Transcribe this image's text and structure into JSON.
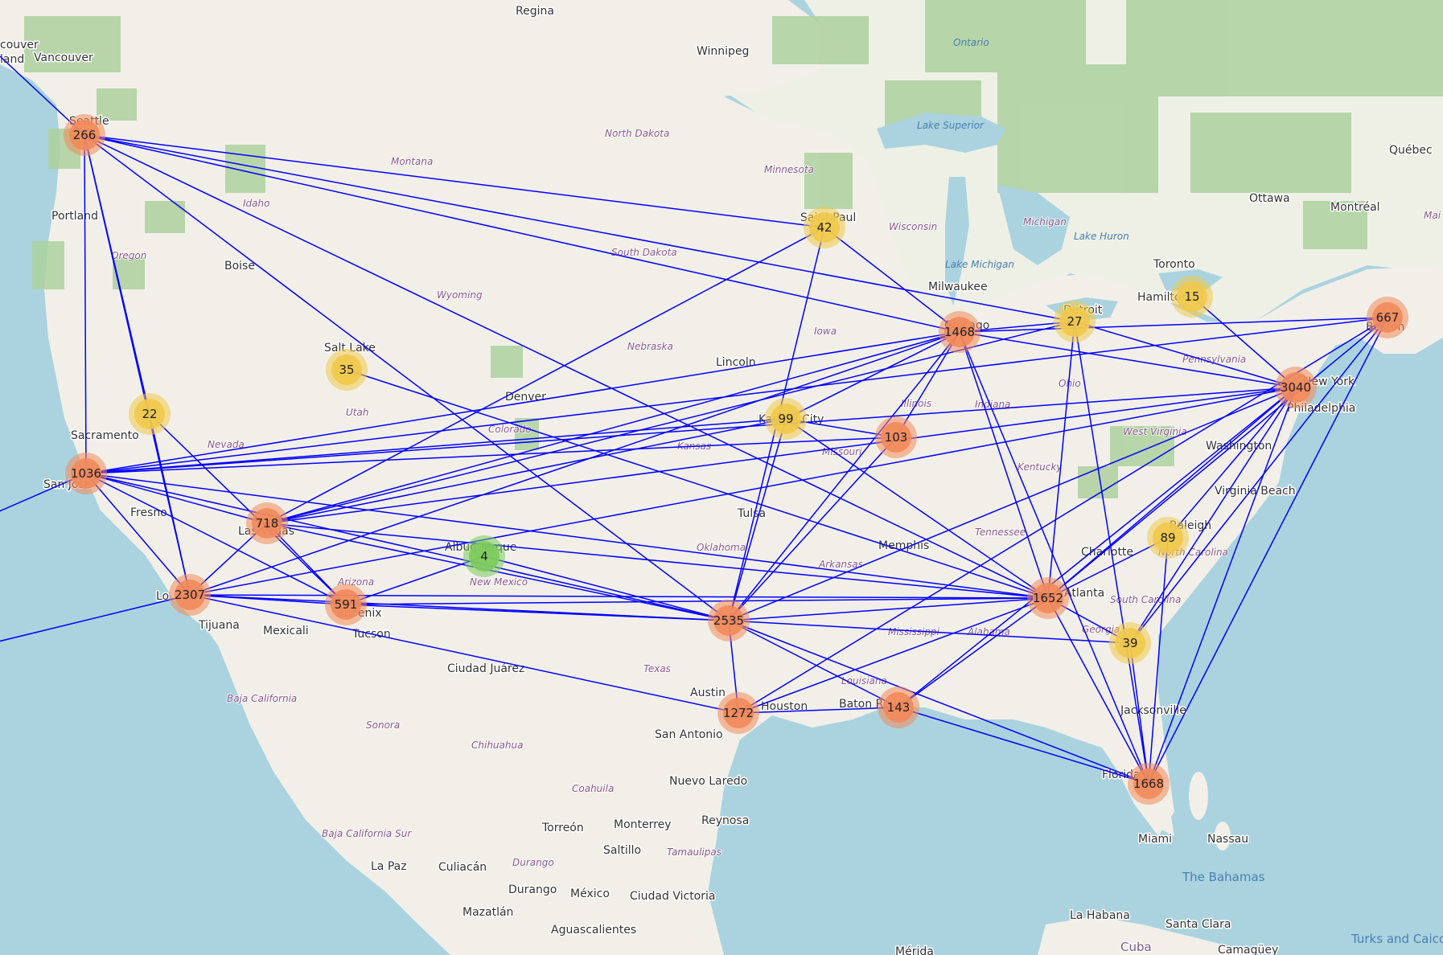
{
  "colors": {
    "ocean": "#aad3df",
    "land": "#f2efe9",
    "canada_land": "#eef0e6",
    "forest": "#add19e",
    "edge": "#0000ff",
    "cluster_large": "#f28a5a",
    "cluster_medium": "#f1c94a",
    "cluster_small": "#7ccb5c"
  },
  "clusters": [
    {
      "count": "266",
      "size": "large"
    },
    {
      "count": "42",
      "size": "medium"
    },
    {
      "count": "15",
      "size": "medium"
    },
    {
      "count": "27",
      "size": "medium"
    },
    {
      "count": "667",
      "size": "large"
    },
    {
      "count": "1468",
      "size": "large"
    },
    {
      "count": "35",
      "size": "medium"
    },
    {
      "count": "22",
      "size": "medium"
    },
    {
      "count": "3040",
      "size": "large"
    },
    {
      "count": "99",
      "size": "medium"
    },
    {
      "count": "103",
      "size": "large"
    },
    {
      "count": "1036",
      "size": "large"
    },
    {
      "count": "718",
      "size": "large"
    },
    {
      "count": "4",
      "size": "small"
    },
    {
      "count": "89",
      "size": "medium"
    },
    {
      "count": "2307",
      "size": "large"
    },
    {
      "count": "591",
      "size": "large"
    },
    {
      "count": "1652",
      "size": "large"
    },
    {
      "count": "2535",
      "size": "large"
    },
    {
      "count": "39",
      "size": "medium"
    },
    {
      "count": "1272",
      "size": "large"
    },
    {
      "count": "143",
      "size": "large"
    },
    {
      "count": "1668",
      "size": "large"
    }
  ],
  "cities": [
    "Regina",
    "Winnipeg",
    "Vancouver",
    "couver",
    "land",
    "Seattle",
    "Portland",
    "Boise",
    "Sacramento",
    "San Jose",
    "Fresno",
    "Las Vegas",
    "Salt Lake",
    "Denver",
    "Albuquerque",
    "Phoenix",
    "Tucson",
    "Mexicali",
    "Tijuana",
    "Lo",
    "Ciudad Juárez",
    "Austin",
    "San Antonio",
    "Houston",
    "Nuevo Laredo",
    "Monterrey",
    "Reynosa",
    "Torreón",
    "Saltillo",
    "Durango",
    "México",
    "Ciudad Victoria",
    "La Paz",
    "Culiacán",
    "Mazatlán",
    "Aguascalientes",
    "Mérida",
    "Lincoln",
    "Kansas City",
    "Tulsa",
    "Memphis",
    "Baton Rouge",
    "Jacksonville",
    "Miami",
    "Nassau",
    "La Habana",
    "Santa Clara",
    "Camagüey",
    "Saint Paul",
    "Milwaukee",
    "Chicago",
    "Detroit",
    "Toronto",
    "Hamilton",
    "Ottawa",
    "Montréal",
    "Québec",
    "New York",
    "Philadelphia",
    "Washington",
    "Virginia Beach",
    "Raleigh",
    "Charlotte",
    "Atlanta",
    "Boston",
    "Florida"
  ],
  "regions": [
    "Montana",
    "North Dakota",
    "Minnesota",
    "South Dakota",
    "Wisconsin",
    "Michigan",
    "Idaho",
    "Oregon",
    "Wyoming",
    "Nebraska",
    "Iowa",
    "Utah",
    "Nevada",
    "Colorado",
    "Kansas",
    "Missouri",
    "Illinois",
    "Indiana",
    "Ohio",
    "Kentucky",
    "West Virginia",
    "Tennessee",
    "Oklahoma",
    "Arkansas",
    "Arizona",
    "New Mexico",
    "Texas",
    "Mississippi",
    "Alabama",
    "Louisiana",
    "Georgia",
    "South Carolina",
    "North Carolina",
    "Pennsylvania",
    "Baja California",
    "Sonora",
    "Chihuahua",
    "Coahuila",
    "Baja California Sur",
    "Durango",
    "Tamaulipas",
    "Mai",
    "Ontario",
    "Lake Superior",
    "Lake Michigan",
    "Lake Huron",
    "Turks and Caicos Islands",
    "Cuba",
    "The Bahamas"
  ]
}
